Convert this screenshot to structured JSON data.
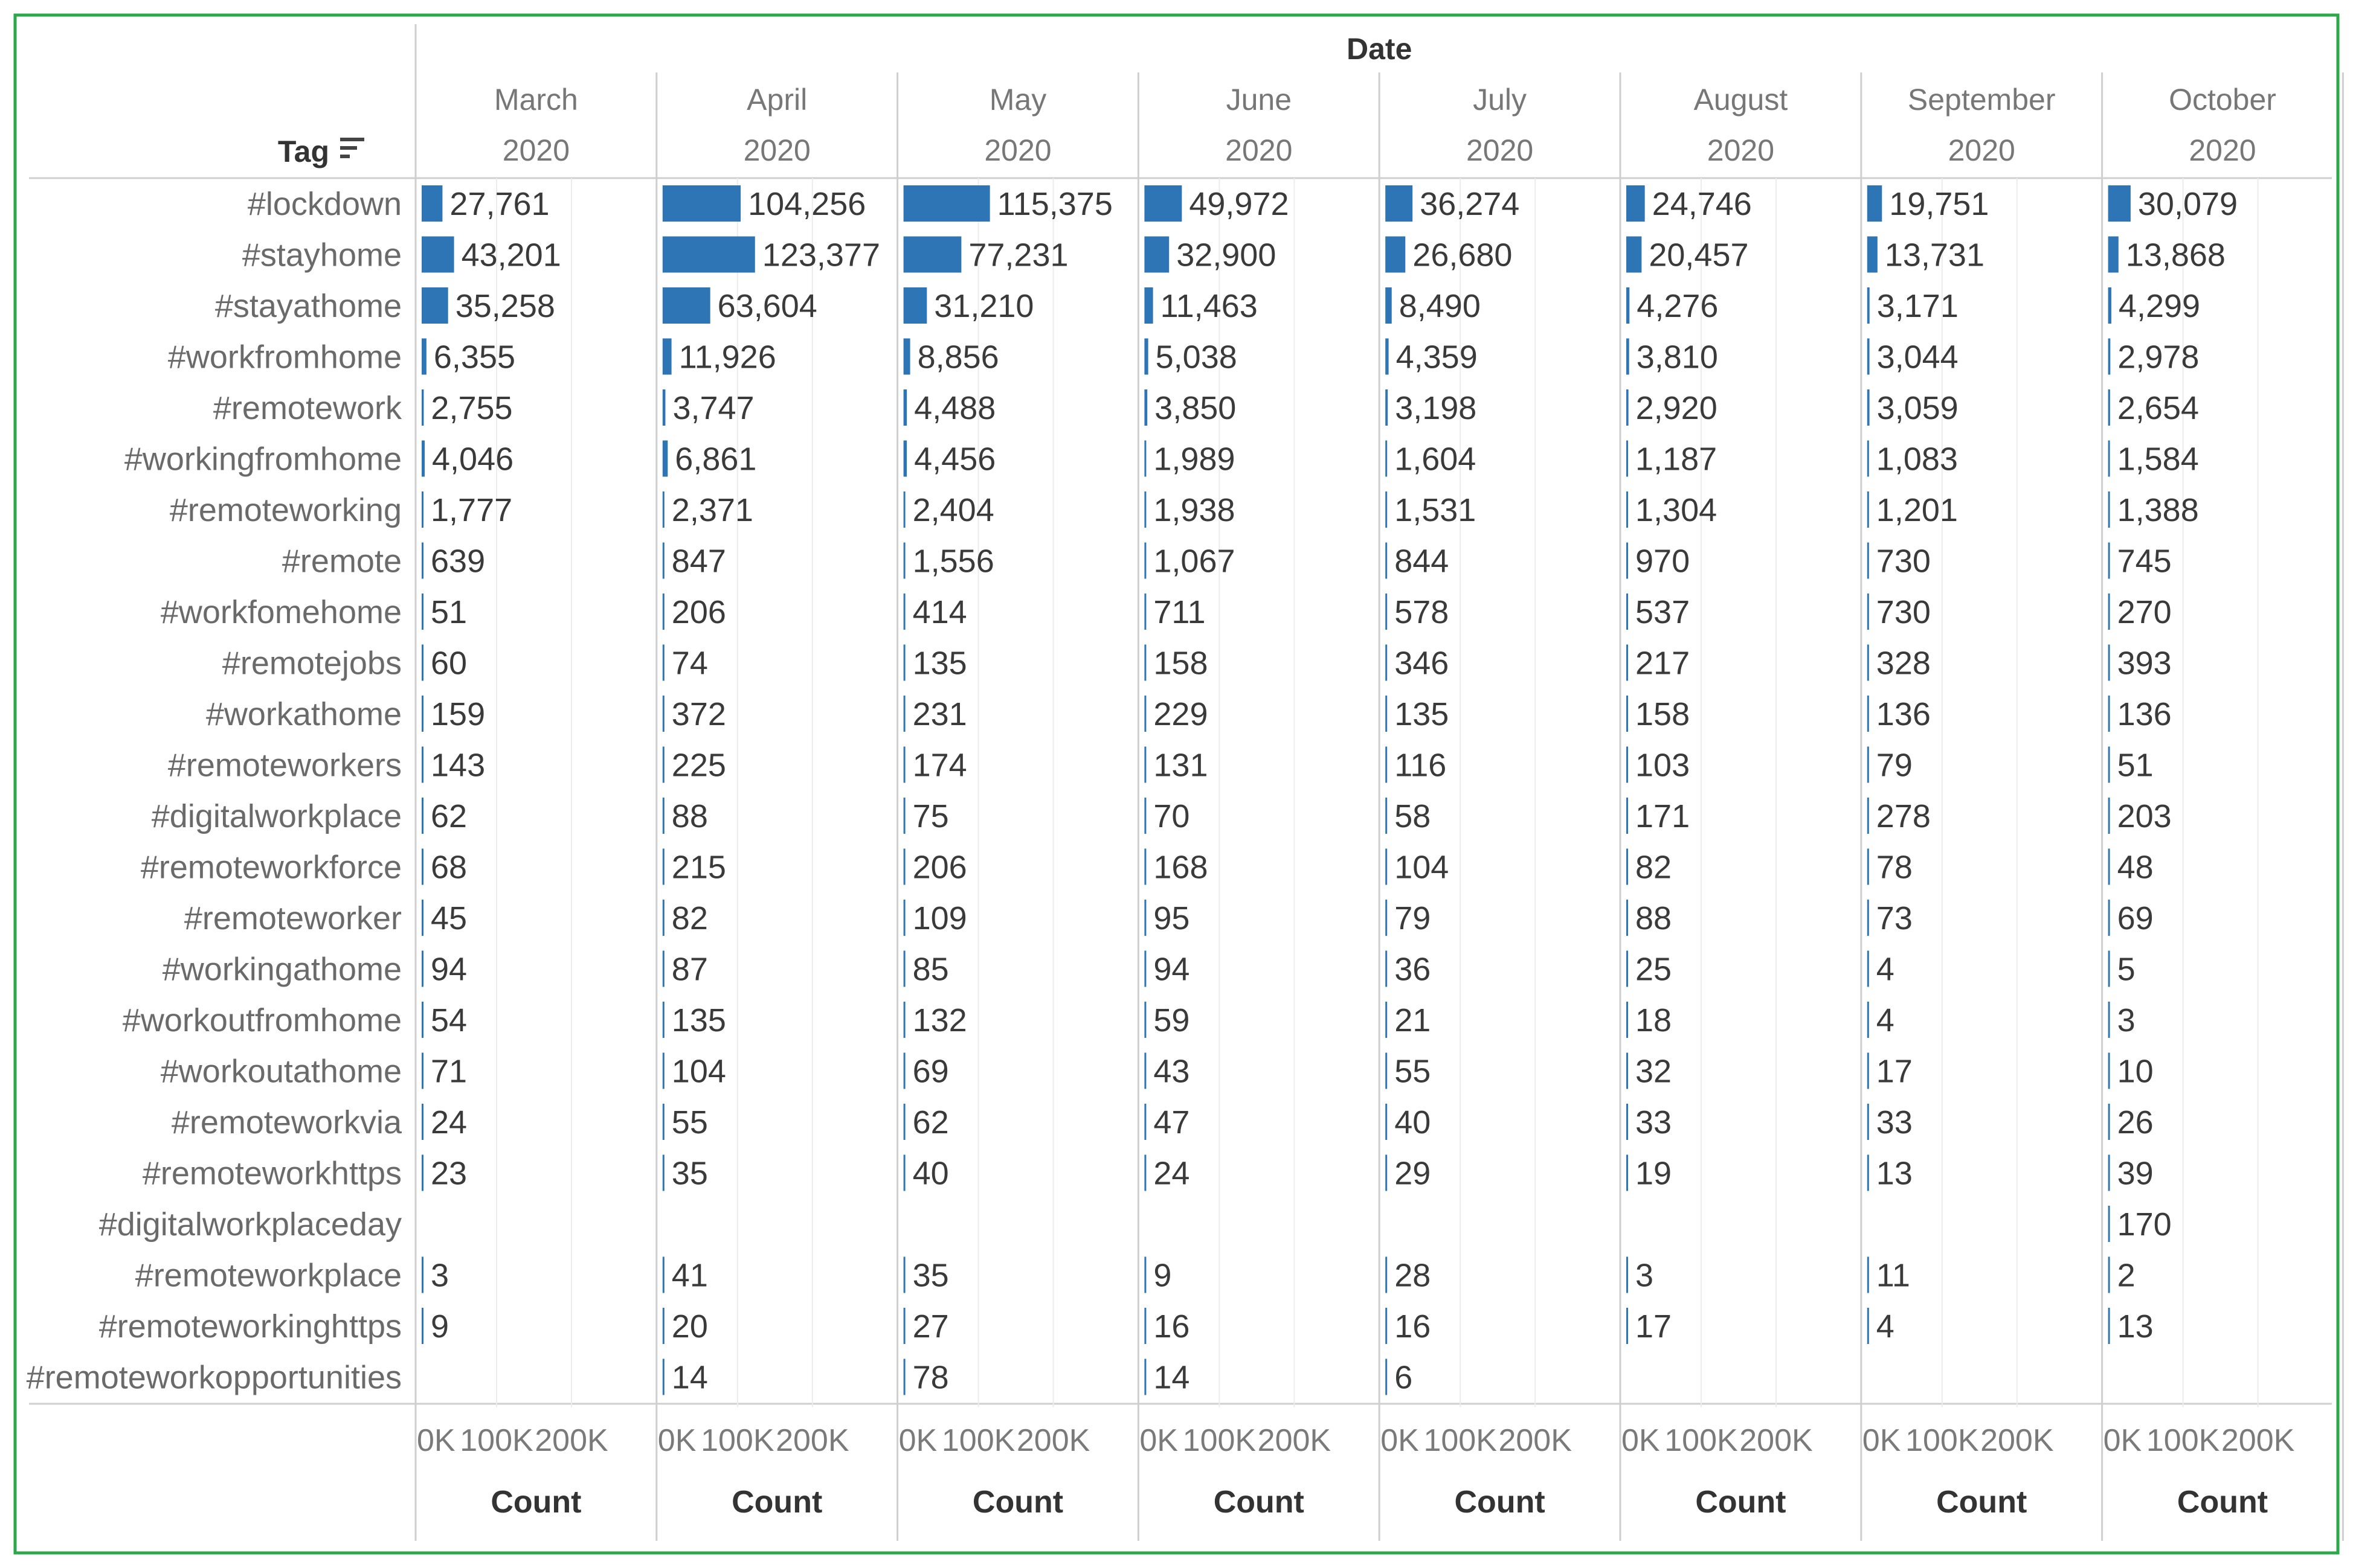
{
  "chart_data": {
    "type": "bar",
    "orientation": "horizontal",
    "column_header": "Date",
    "row_header": "Tag",
    "year": "2020",
    "months": [
      "March",
      "April",
      "May",
      "June",
      "July",
      "August",
      "September",
      "October"
    ],
    "tags": [
      "#lockdown",
      "#stayhome",
      "#stayathome",
      "#workfromhome",
      "#remotework",
      "#workingfromhome",
      "#remoteworking",
      "#remote",
      "#workfomehome",
      "#remotejobs",
      "#workathome",
      "#remoteworkers",
      "#digitalworkplace",
      "#remoteworkforce",
      "#remoteworker",
      "#workingathome",
      "#workoutfromhome",
      "#workoutathome",
      "#remoteworkvia",
      "#remoteworkhttps",
      "#digitalworkplaceday",
      "#remoteworkplace",
      "#remoteworkinghttps",
      "#remoteworkopportunities"
    ],
    "values": [
      [
        27761,
        104256,
        115375,
        49972,
        36274,
        24746,
        19751,
        30079
      ],
      [
        43201,
        123377,
        77231,
        32900,
        26680,
        20457,
        13731,
        13868
      ],
      [
        35258,
        63604,
        31210,
        11463,
        8490,
        4276,
        3171,
        4299
      ],
      [
        6355,
        11926,
        8856,
        5038,
        4359,
        3810,
        3044,
        2978
      ],
      [
        2755,
        3747,
        4488,
        3850,
        3198,
        2920,
        3059,
        2654
      ],
      [
        4046,
        6861,
        4456,
        1989,
        1604,
        1187,
        1083,
        1584
      ],
      [
        1777,
        2371,
        2404,
        1938,
        1531,
        1304,
        1201,
        1388
      ],
      [
        639,
        847,
        1556,
        1067,
        844,
        970,
        730,
        745
      ],
      [
        51,
        206,
        414,
        711,
        578,
        537,
        730,
        270
      ],
      [
        60,
        74,
        135,
        158,
        346,
        217,
        328,
        393
      ],
      [
        159,
        372,
        231,
        229,
        135,
        158,
        136,
        136
      ],
      [
        143,
        225,
        174,
        131,
        116,
        103,
        79,
        51
      ],
      [
        62,
        88,
        75,
        70,
        58,
        171,
        278,
        203
      ],
      [
        68,
        215,
        206,
        168,
        104,
        82,
        78,
        48
      ],
      [
        45,
        82,
        109,
        95,
        79,
        88,
        73,
        69
      ],
      [
        94,
        87,
        85,
        94,
        36,
        25,
        4,
        5
      ],
      [
        54,
        135,
        132,
        59,
        21,
        18,
        4,
        3
      ],
      [
        71,
        104,
        69,
        43,
        55,
        32,
        17,
        10
      ],
      [
        24,
        55,
        62,
        47,
        40,
        33,
        33,
        26
      ],
      [
        23,
        35,
        40,
        24,
        29,
        19,
        13,
        39
      ],
      [
        null,
        null,
        null,
        null,
        null,
        null,
        null,
        170
      ],
      [
        3,
        41,
        35,
        9,
        28,
        3,
        11,
        2
      ],
      [
        9,
        20,
        27,
        16,
        16,
        17,
        4,
        13
      ],
      [
        null,
        14,
        78,
        14,
        6,
        null,
        null,
        null
      ]
    ],
    "xaxis_ticks": [
      "0K",
      "100K",
      "200K"
    ],
    "xaxis_tick_values": [
      0,
      100000,
      200000
    ],
    "xlim": [
      0,
      250000
    ],
    "xlabel": "Count",
    "bar_color": "#2e75b6",
    "frame_color": "#2aa84a",
    "grid": true
  }
}
